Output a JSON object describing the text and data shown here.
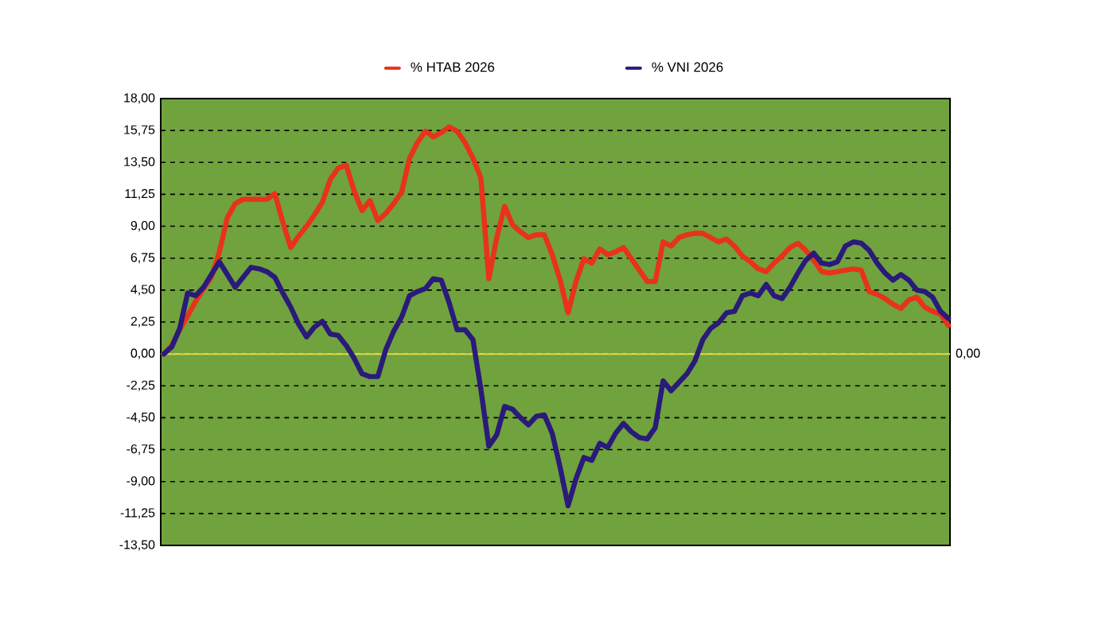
{
  "chart_data": {
    "type": "line",
    "categories": [
      null,
      null,
      null,
      null,
      null,
      null,
      null,
      null,
      null,
      null,
      null,
      null,
      null,
      null,
      null,
      null,
      null,
      null,
      null,
      null,
      null,
      null,
      null,
      null,
      null,
      null,
      null,
      null,
      null,
      null,
      null,
      null,
      null,
      null,
      null,
      null,
      null,
      null,
      null,
      null,
      null,
      null,
      null,
      null,
      null,
      null,
      null,
      null,
      null,
      null,
      null,
      null,
      null,
      null,
      null,
      null,
      null,
      null,
      null,
      null,
      null,
      null,
      null,
      null,
      null,
      null,
      null,
      null,
      null,
      null,
      null,
      null,
      null,
      null,
      null,
      null,
      null,
      null,
      null,
      null,
      null,
      null,
      null,
      null,
      null,
      null,
      null,
      null,
      null,
      null,
      null,
      null,
      null,
      null,
      null,
      null,
      null,
      null,
      null,
      null
    ],
    "series": [
      {
        "name": "% HTAB 2026",
        "color": "#e8321a",
        "values": [
          0,
          0.6,
          1.7,
          2.7,
          3.7,
          4.6,
          5.4,
          7.2,
          9.6,
          10.6,
          10.9,
          10.9,
          10.9,
          10.9,
          11.3,
          9.3,
          7.5,
          8.3,
          9.0,
          9.8,
          10.7,
          12.3,
          13.1,
          13.3,
          11.5,
          10.1,
          10.8,
          9.4,
          9.9,
          10.6,
          11.4,
          13.8,
          14.9,
          15.7,
          15.3,
          15.6,
          16.0,
          15.7,
          14.9,
          13.8,
          12.4,
          5.3,
          8.2,
          10.4,
          9.1,
          8.6,
          8.2,
          8.4,
          8.4,
          7.0,
          5.2,
          2.9,
          5.1,
          6.7,
          6.4,
          7.4,
          7.0,
          7.2,
          7.5,
          6.7,
          5.9,
          5.1,
          5.1,
          7.9,
          7.6,
          8.2,
          8.4,
          8.5,
          8.5,
          8.2,
          7.9,
          8.1,
          7.6,
          6.9,
          6.5,
          6.0,
          5.8,
          6.4,
          6.9,
          7.5,
          7.8,
          7.3,
          6.6,
          5.8,
          5.7,
          5.8,
          5.9,
          6.0,
          5.9,
          4.4,
          4.2,
          3.9,
          3.5,
          3.2,
          3.8,
          4.0,
          3.3,
          3.0,
          2.8,
          2.0
        ]
      },
      {
        "name": "% VNI 2026",
        "color": "#2a1a7a",
        "values": [
          0,
          0.5,
          1.8,
          4.3,
          4.1,
          4.7,
          5.6,
          6.5,
          5.6,
          4.7,
          5.4,
          6.1,
          6.0,
          5.8,
          5.4,
          4.3,
          3.3,
          2.1,
          1.2,
          1.9,
          2.3,
          1.4,
          1.3,
          0.6,
          -0.3,
          -1.4,
          -1.6,
          -1.6,
          0.3,
          1.6,
          2.6,
          4.1,
          4.4,
          4.6,
          5.3,
          5.2,
          3.6,
          1.7,
          1.7,
          1.0,
          -2.5,
          -6.5,
          -5.7,
          -3.7,
          -3.9,
          -4.5,
          -5.0,
          -4.4,
          -4.3,
          -5.6,
          -8.0,
          -10.7,
          -8.8,
          -7.3,
          -7.5,
          -6.3,
          -6.6,
          -5.6,
          -4.9,
          -5.5,
          -5.9,
          -6.0,
          -5.2,
          -1.9,
          -2.6,
          -2.0,
          -1.4,
          -0.5,
          1.0,
          1.8,
          2.2,
          2.9,
          3.0,
          4.1,
          4.3,
          4.1,
          4.9,
          4.1,
          3.9,
          4.7,
          5.7,
          6.6,
          7.1,
          6.4,
          6.3,
          6.5,
          7.6,
          7.9,
          7.8,
          7.3,
          6.4,
          5.7,
          5.2,
          5.6,
          5.2,
          4.5,
          4.4,
          4.0,
          3.0,
          2.5
        ]
      }
    ],
    "ylim": [
      -13.5,
      18
    ],
    "yticks": [
      {
        "value": -13.5,
        "label": "-13,50"
      },
      {
        "value": -11.25,
        "label": "-11,25"
      },
      {
        "value": -9,
        "label": "-9,00"
      },
      {
        "value": -6.75,
        "label": "-6,75"
      },
      {
        "value": -4.5,
        "label": "-4,50"
      },
      {
        "value": -2.25,
        "label": "-2,25"
      },
      {
        "value": 0,
        "label": "0,00"
      },
      {
        "value": 2.25,
        "label": "2,25"
      },
      {
        "value": 4.5,
        "label": "4,50"
      },
      {
        "value": 6.75,
        "label": "6,75"
      },
      {
        "value": 9,
        "label": "9,00"
      },
      {
        "value": 11.25,
        "label": "11,25"
      },
      {
        "value": 13.5,
        "label": "13,50"
      },
      {
        "value": 15.75,
        "label": "15,75"
      },
      {
        "value": 18,
        "label": "18,00"
      }
    ],
    "tick_labels": "y",
    "grid": "y",
    "legend": "top",
    "marker": "none",
    "line_style": "solid",
    "ref_lines": [
      {
        "axis": "y",
        "value": 0,
        "color": "#f0e040"
      }
    ],
    "annotations": [
      "0,00"
    ]
  }
}
